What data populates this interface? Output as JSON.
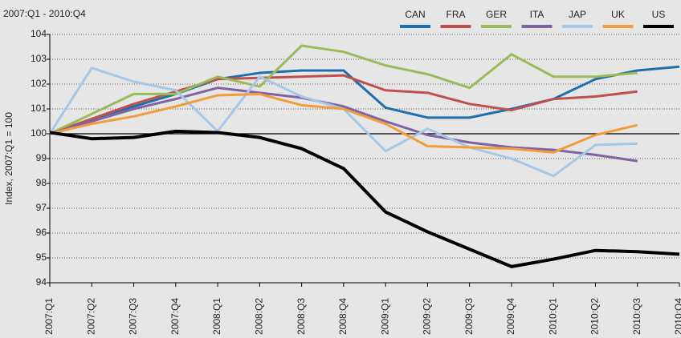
{
  "chart_data": {
    "type": "line",
    "subtitle": "2007:Q1 - 2010:Q4",
    "y_label": "Index, 2007:Q1 = 100",
    "categories": [
      "2007:Q1",
      "2007:Q2",
      "2007:Q3",
      "2007:Q4",
      "2008:Q1",
      "2008:Q2",
      "2008:Q3",
      "2008:Q4",
      "2009:Q1",
      "2009:Q2",
      "2009:Q3",
      "2009:Q4",
      "2010:Q1",
      "2010:Q2",
      "2010:Q3",
      "2010:Q4"
    ],
    "series": [
      {
        "name": "CAN",
        "color": "#1f6fad",
        "values": [
          100,
          100.6,
          101.1,
          101.6,
          102.2,
          102.45,
          102.55,
          102.55,
          101.05,
          100.65,
          100.65,
          101.0,
          101.4,
          102.2,
          102.55,
          102.7
        ]
      },
      {
        "name": "FRA",
        "color": "#c0504d",
        "values": [
          100,
          100.6,
          101.2,
          101.7,
          102.2,
          102.25,
          102.3,
          102.35,
          101.75,
          101.65,
          101.2,
          100.95,
          101.4,
          101.5,
          101.7,
          null
        ]
      },
      {
        "name": "GER",
        "color": "#9bbb59",
        "values": [
          100,
          100.8,
          101.6,
          101.6,
          102.3,
          101.9,
          103.55,
          103.3,
          102.75,
          102.4,
          101.85,
          103.2,
          102.3,
          102.3,
          102.45,
          null
        ]
      },
      {
        "name": "ITA",
        "color": "#8064a2",
        "values": [
          100,
          100.5,
          101.0,
          101.4,
          101.85,
          101.65,
          101.45,
          101.1,
          100.5,
          99.95,
          99.65,
          99.45,
          99.35,
          99.15,
          98.9,
          null
        ]
      },
      {
        "name": "JAP",
        "color": "#a6c8e6",
        "values": [
          100,
          102.65,
          102.1,
          101.75,
          100.1,
          102.3,
          101.5,
          101.0,
          99.3,
          100.2,
          99.45,
          99.0,
          98.3,
          99.55,
          99.6,
          null
        ]
      },
      {
        "name": "UK",
        "color": "#f39c3c",
        "values": [
          100,
          100.4,
          100.7,
          101.1,
          101.55,
          101.6,
          101.15,
          101.0,
          100.4,
          99.5,
          99.45,
          99.4,
          99.25,
          99.95,
          100.35,
          null
        ]
      },
      {
        "name": "US",
        "color": "#000000",
        "values": [
          100.05,
          99.8,
          99.85,
          100.1,
          100.05,
          99.85,
          99.4,
          98.6,
          96.85,
          96.05,
          95.35,
          94.65,
          94.95,
          95.3,
          95.25,
          95.15
        ]
      }
    ],
    "ylim": [
      94,
      104
    ],
    "yticks": [
      94,
      95,
      96,
      97,
      98,
      99,
      100,
      101,
      102,
      103,
      104
    ],
    "reference_line": 100,
    "grid": true
  }
}
